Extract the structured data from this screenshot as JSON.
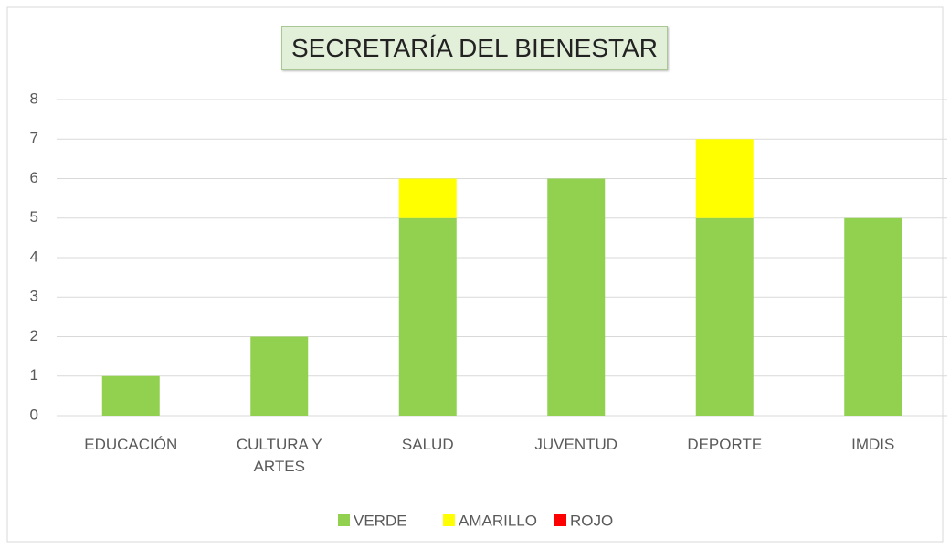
{
  "chart_data": {
    "type": "stacked_bar",
    "title": "SECRETARÍA DEL BIENESTAR",
    "categories": [
      "EDUCACIÓN",
      "CULTURA Y ARTES",
      "SALUD",
      "JUVENTUD",
      "DEPORTE",
      "IMDIS"
    ],
    "series": [
      {
        "name": "VERDE",
        "color": "#92d050",
        "values": [
          1,
          2,
          5,
          6,
          5,
          5
        ]
      },
      {
        "name": "AMARILLO",
        "color": "#ffff00",
        "values": [
          0,
          0,
          1,
          0,
          2,
          0
        ]
      },
      {
        "name": "ROJO",
        "color": "#ff0000",
        "values": [
          0,
          0,
          0,
          0,
          0,
          0
        ]
      }
    ],
    "ylim": [
      0,
      8
    ],
    "yticks": [
      0,
      1,
      2,
      3,
      4,
      5,
      6,
      7,
      8
    ],
    "grid": true,
    "legend": "bottom"
  }
}
